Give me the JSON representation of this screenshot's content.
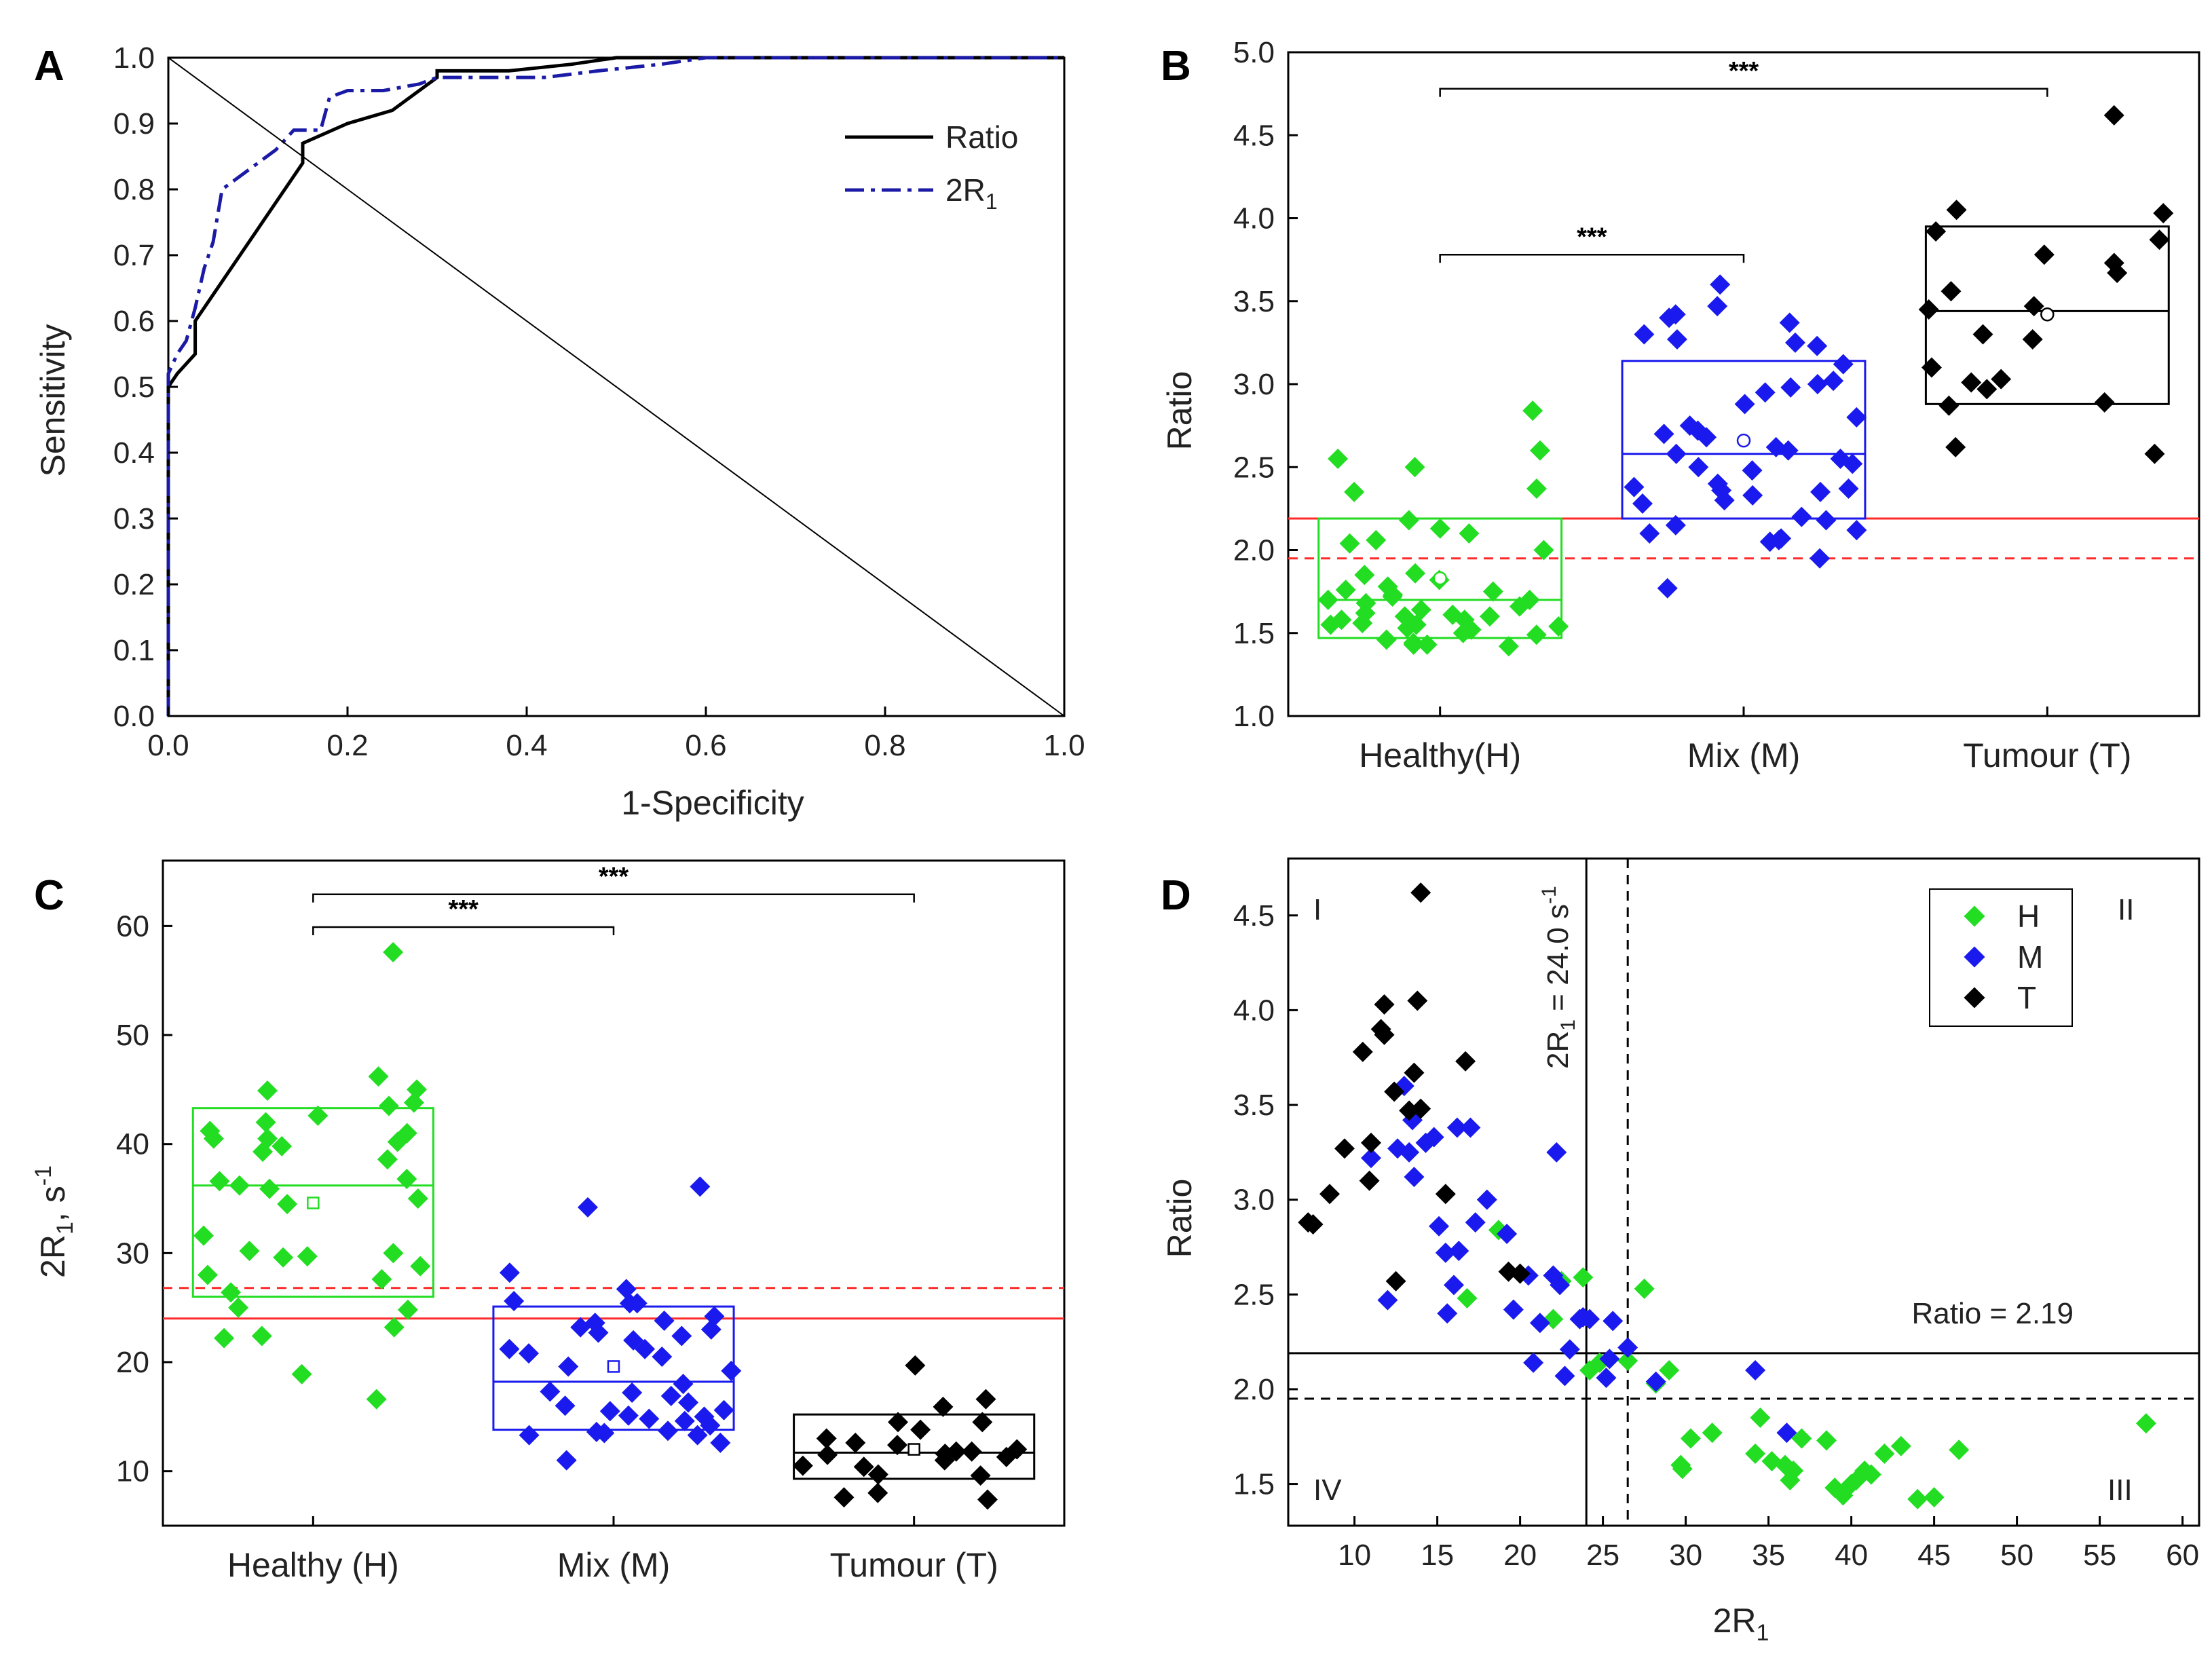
{
  "chart_data": [
    {
      "panel": "A",
      "type": "line",
      "xlabel": "1-Specificity",
      "ylabel": "Sensitivity",
      "xlim": [
        0,
        1
      ],
      "ylim": [
        0,
        1
      ],
      "xticks": [
        "0.0",
        "0.2",
        "0.4",
        "0.6",
        "0.8",
        "1.0"
      ],
      "yticks": [
        "0.0",
        "0.1",
        "0.2",
        "0.3",
        "0.4",
        "0.5",
        "0.6",
        "0.7",
        "0.8",
        "0.9",
        "1.0"
      ],
      "series": [
        {
          "name": "Ratio",
          "style": "solid",
          "color": "#000000",
          "x": [
            0,
            0,
            0.01,
            0.03,
            0.03,
            0.05,
            0.08,
            0.12,
            0.15,
            0.15,
            0.2,
            0.25,
            0.3,
            0.3,
            0.38,
            0.45,
            0.5,
            0.56,
            1.0
          ],
          "y": [
            0,
            0.5,
            0.52,
            0.55,
            0.6,
            0.64,
            0.7,
            0.78,
            0.84,
            0.87,
            0.9,
            0.92,
            0.97,
            0.98,
            0.98,
            0.99,
            1.0,
            1.0,
            1.0
          ]
        },
        {
          "name": "2R",
          "sub": "1",
          "style": "dashdot",
          "color": "#1a1aa6",
          "x": [
            0,
            0,
            0.01,
            0.02,
            0.03,
            0.04,
            0.05,
            0.06,
            0.08,
            0.12,
            0.14,
            0.17,
            0.18,
            0.2,
            0.24,
            0.28,
            0.3,
            0.38,
            0.42,
            0.48,
            0.55,
            0.6,
            1.0
          ],
          "y": [
            0,
            0.52,
            0.55,
            0.57,
            0.62,
            0.68,
            0.72,
            0.8,
            0.82,
            0.86,
            0.89,
            0.89,
            0.94,
            0.95,
            0.95,
            0.96,
            0.97,
            0.97,
            0.97,
            0.98,
            0.99,
            1.0,
            1.0
          ]
        },
        {
          "name": "diagonal",
          "style": "thin",
          "color": "#000000",
          "x": [
            0,
            1
          ],
          "y": [
            1,
            0
          ]
        }
      ],
      "legend": [
        {
          "label": "Ratio"
        },
        {
          "label": "2R",
          "sub": "1"
        }
      ]
    },
    {
      "panel": "B",
      "type": "box-scatter",
      "ylabel": "Ratio",
      "ylim": [
        1.0,
        5.0
      ],
      "yticks": [
        "1.0",
        "1.5",
        "2.0",
        "2.5",
        "3.0",
        "3.5",
        "4.0",
        "4.5",
        "5.0"
      ],
      "categories": [
        "Healthy(H)",
        "Mix (M)",
        "Tumour (T)"
      ],
      "colors": [
        "#22dd22",
        "#1a1aee",
        "#000000"
      ],
      "boxes": [
        {
          "q1": 1.47,
          "median": 1.7,
          "q3": 2.19,
          "mean": 1.83
        },
        {
          "q1": 2.19,
          "median": 2.58,
          "q3": 3.14,
          "mean": 2.66
        },
        {
          "q1": 2.88,
          "median": 3.44,
          "q3": 3.95,
          "mean": 3.42
        }
      ],
      "points": [
        [
          2.84,
          2.6,
          2.55,
          2.5,
          2.37,
          2.35,
          2.18,
          2.13,
          2.1,
          2.06,
          2.04,
          2.0,
          1.86,
          1.85,
          1.82,
          1.78,
          1.76,
          1.75,
          1.73,
          1.72,
          1.7,
          1.7,
          1.68,
          1.66,
          1.64,
          1.62,
          1.61,
          1.6,
          1.6,
          1.58,
          1.58,
          1.56,
          1.55,
          1.55,
          1.54,
          1.53,
          1.52,
          1.5,
          1.49,
          1.46,
          1.44,
          1.43,
          1.43,
          1.42
        ],
        [
          3.6,
          3.47,
          3.42,
          3.4,
          3.37,
          3.3,
          3.27,
          3.25,
          3.23,
          3.12,
          3.02,
          3.0,
          2.98,
          2.95,
          2.88,
          2.8,
          2.75,
          2.72,
          2.7,
          2.68,
          2.62,
          2.6,
          2.58,
          2.55,
          2.52,
          2.5,
          2.48,
          2.4,
          2.38,
          2.37,
          2.36,
          2.35,
          2.33,
          2.3,
          2.28,
          2.2,
          2.18,
          2.15,
          2.12,
          2.1,
          2.07,
          2.06,
          2.05,
          1.95,
          1.77
        ],
        [
          4.62,
          4.05,
          4.03,
          3.92,
          3.87,
          3.78,
          3.73,
          3.67,
          3.56,
          3.47,
          3.45,
          3.3,
          3.27,
          3.1,
          3.03,
          3.01,
          2.97,
          2.89,
          2.87,
          2.62,
          2.58
        ]
      ],
      "threshold_solid": 2.19,
      "threshold_dashed": 1.95,
      "significance": [
        {
          "from": 0,
          "to": 2,
          "y": 4.78,
          "label": "***"
        },
        {
          "from": 0,
          "to": 1,
          "y": 3.78,
          "label": "***"
        }
      ]
    },
    {
      "panel": "C",
      "type": "box-scatter",
      "ylabel": "2R",
      "ylabel_sub": "1",
      "ylabel_tail": ", s",
      "ylabel_sup": "-1",
      "ylim": [
        5,
        66
      ],
      "yticks": [
        "10",
        "20",
        "30",
        "40",
        "50",
        "60"
      ],
      "categories": [
        "Healthy (H)",
        "Mix (M)",
        "Tumour (T)"
      ],
      "colors": [
        "#22dd22",
        "#1a1aee",
        "#000000"
      ],
      "boxes": [
        {
          "q1": 26.0,
          "median": 36.2,
          "q3": 43.3,
          "mean": 34.6
        },
        {
          "q1": 13.8,
          "median": 18.2,
          "q3": 25.1,
          "mean": 19.6
        },
        {
          "q1": 9.3,
          "median": 11.7,
          "q3": 15.2,
          "mean": 12.0
        }
      ],
      "points": [
        [
          57.6,
          46.2,
          45.0,
          44.9,
          43.8,
          43.5,
          42.6,
          42.0,
          41.2,
          41.0,
          40.5,
          40.5,
          40.2,
          39.8,
          39.3,
          38.6,
          36.8,
          36.6,
          36.2,
          35.9,
          35.0,
          34.5,
          31.6,
          30.2,
          30.0,
          29.7,
          29.6,
          28.8,
          28.0,
          27.6,
          26.4,
          25.0,
          24.8,
          23.2,
          22.4,
          22.2,
          18.9,
          16.6
        ],
        [
          36.1,
          34.2,
          28.2,
          26.7,
          25.6,
          25.4,
          25.4,
          24.2,
          23.8,
          23.6,
          23.2,
          23.0,
          22.7,
          22.4,
          22.0,
          21.2,
          21.2,
          20.8,
          20.5,
          19.6,
          19.2,
          18.0,
          17.3,
          17.2,
          16.9,
          16.3,
          16.0,
          15.6,
          15.5,
          15.1,
          15.0,
          14.8,
          14.6,
          14.2,
          13.7,
          13.6,
          13.5,
          13.3,
          13.3,
          12.6,
          11.0
        ],
        [
          19.7,
          16.6,
          15.9,
          14.5,
          14.5,
          13.8,
          13.0,
          12.6,
          12.4,
          12.0,
          11.8,
          11.8,
          11.6,
          11.5,
          11.3,
          11.0,
          10.5,
          10.4,
          9.7,
          9.6,
          8.0,
          7.6,
          7.4
        ]
      ],
      "threshold_solid": 24.0,
      "threshold_dashed": 26.8,
      "significance": [
        {
          "from": 0,
          "to": 2,
          "y": 62.9,
          "label": "***"
        },
        {
          "from": 0,
          "to": 1,
          "y": 59.9,
          "label": "***"
        }
      ]
    },
    {
      "panel": "D",
      "type": "scatter",
      "xlabel": "2R",
      "xlabel_sub": "1",
      "ylabel": "Ratio",
      "xlim": [
        6,
        61
      ],
      "ylim": [
        1.28,
        4.8
      ],
      "xticks": [
        "10",
        "15",
        "20",
        "25",
        "30",
        "35",
        "40",
        "45",
        "50",
        "55",
        "60"
      ],
      "yticks": [
        "1.5",
        "2.0",
        "2.5",
        "3.0",
        "3.5",
        "4.0",
        "4.5"
      ],
      "series": [
        {
          "name": "H",
          "color": "#22dd22",
          "x": [
            57.8,
            46.5,
            45,
            44,
            43,
            42,
            41.2,
            40.8,
            40.3,
            40,
            39.5,
            39,
            38.5,
            37,
            36.5,
            36.3,
            36,
            35.2,
            34.5,
            34.2,
            31.6,
            30.3,
            29.8,
            29.7,
            29,
            28.2,
            27.5,
            26.5,
            24.8,
            24.2,
            23.8,
            22.5,
            22,
            18.7,
            16.8
          ],
          "y": [
            1.82,
            1.68,
            1.43,
            1.42,
            1.7,
            1.66,
            1.55,
            1.57,
            1.52,
            1.5,
            1.44,
            1.48,
            1.73,
            1.74,
            1.57,
            1.52,
            1.6,
            1.62,
            1.85,
            1.66,
            1.77,
            1.74,
            1.58,
            1.6,
            2.1,
            2.03,
            2.53,
            2.15,
            2.14,
            2.1,
            2.59,
            2.57,
            2.37,
            2.84,
            2.48
          ]
        },
        {
          "name": "M",
          "color": "#1a1aee",
          "x": [
            36.1,
            34.2,
            28.2,
            26.5,
            25.6,
            25.4,
            25.2,
            24.2,
            23.8,
            23.6,
            23.0,
            22.7,
            22.4,
            22.0,
            21.2,
            20.8,
            20.5,
            19.6,
            19.2,
            18.0,
            17.3,
            17.0,
            16.3,
            16.0,
            15.6,
            15.5,
            15.1,
            14.8,
            14.3,
            13.6,
            13.5,
            13.3,
            13.0,
            12.6,
            12.0,
            11.0,
            16.2,
            22.2
          ],
          "y": [
            1.77,
            2.1,
            2.04,
            2.22,
            2.36,
            2.16,
            2.06,
            2.37,
            2.38,
            2.37,
            2.21,
            2.07,
            2.55,
            2.6,
            2.35,
            2.14,
            2.6,
            2.42,
            2.82,
            3.0,
            2.88,
            3.38,
            2.73,
            2.55,
            2.4,
            2.72,
            2.86,
            3.33,
            3.3,
            3.12,
            3.42,
            3.25,
            3.6,
            3.27,
            2.47,
            3.22,
            3.38,
            3.25
          ]
        },
        {
          "name": "T",
          "color": "#000000",
          "x": [
            14.0,
            13.8,
            13.6,
            12.4,
            11.6,
            11.8,
            11.8,
            13.3,
            14.0,
            9.4,
            10.5,
            7.5,
            7.2,
            8.5,
            11.0,
            10.9,
            12.5,
            15.5,
            19.3,
            16.7,
            20.0
          ],
          "y": [
            4.62,
            4.05,
            3.67,
            3.57,
            3.9,
            4.03,
            3.87,
            3.47,
            3.48,
            3.27,
            3.78,
            2.87,
            2.88,
            3.03,
            3.3,
            3.1,
            2.57,
            3.03,
            2.62,
            3.73,
            2.61
          ]
        }
      ],
      "vline_solid": 24.0,
      "vline_dashed": 26.5,
      "hline_solid": 2.19,
      "hline_dashed": 1.95,
      "vline_label": "2R",
      "vline_label_sub": "1",
      "vline_label_tail": " = 24.0 s",
      "vline_label_sup": "-1",
      "hline_label": "Ratio = 2.19",
      "quadrants": [
        "I",
        "II",
        "III",
        "IV"
      ],
      "legend": [
        {
          "label": "H"
        },
        {
          "label": "M"
        },
        {
          "label": "T"
        }
      ]
    }
  ]
}
